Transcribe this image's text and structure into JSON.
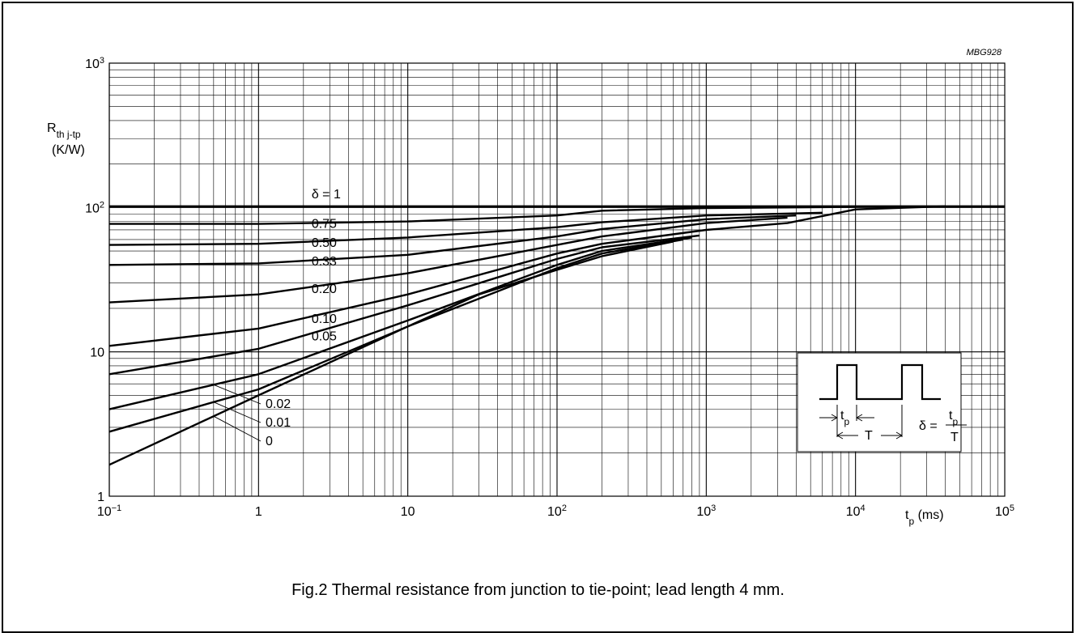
{
  "figure_code": "MBG928",
  "caption": "Fig.2  Thermal resistance from junction to tie-point; lead length 4 mm.",
  "chart_data": {
    "type": "line",
    "title": "",
    "xlabel": "t",
    "xlabel_sub": "p",
    "xlabel_unit": "(ms)",
    "ylabel": "R",
    "ylabel_sub": "th j-tp",
    "ylabel_unit": "(K/W)",
    "x_scale": "log",
    "y_scale": "log",
    "xlim": [
      0.1,
      100000
    ],
    "ylim": [
      1,
      1000
    ],
    "grid": true,
    "x_ticks": [
      {
        "value": 0.1,
        "base": "10",
        "exp": "−1"
      },
      {
        "value": 1,
        "base": "1",
        "exp": ""
      },
      {
        "value": 10,
        "base": "10",
        "exp": ""
      },
      {
        "value": 100,
        "base": "10",
        "exp": "2"
      },
      {
        "value": 1000,
        "base": "10",
        "exp": "3"
      },
      {
        "value": 10000,
        "base": "10",
        "exp": "4"
      },
      {
        "value": 100000,
        "base": "10",
        "exp": "5"
      }
    ],
    "y_ticks": [
      {
        "value": 1,
        "base": "1",
        "exp": ""
      },
      {
        "value": 10,
        "base": "10",
        "exp": ""
      },
      {
        "value": 100,
        "base": "10",
        "exp": "2"
      },
      {
        "value": 1000,
        "base": "10",
        "exp": "3"
      }
    ],
    "series": [
      {
        "name": "δ = 1",
        "label": "δ = 1",
        "label_at": 2.0,
        "points": [
          [
            0.1,
            102
          ],
          [
            100000,
            102
          ]
        ]
      },
      {
        "name": "0.75",
        "label": "0.75",
        "label_at": 2.0,
        "points": [
          [
            0.1,
            77
          ],
          [
            1,
            77
          ],
          [
            10,
            80
          ],
          [
            100,
            88
          ],
          [
            200,
            95
          ],
          [
            1000,
            99
          ],
          [
            10000,
            101
          ]
        ]
      },
      {
        "name": "0.50",
        "label": "0.50",
        "label_at": 2.0,
        "points": [
          [
            0.1,
            55
          ],
          [
            1,
            56
          ],
          [
            10,
            62
          ],
          [
            100,
            73
          ],
          [
            200,
            79
          ],
          [
            1000,
            88
          ],
          [
            6000,
            92
          ]
        ]
      },
      {
        "name": "0.33",
        "label": "0.33",
        "label_at": 2.0,
        "points": [
          [
            0.1,
            40
          ],
          [
            1,
            41
          ],
          [
            10,
            47
          ],
          [
            100,
            63
          ],
          [
            200,
            71
          ],
          [
            1000,
            83
          ],
          [
            4000,
            88
          ]
        ]
      },
      {
        "name": "0.20",
        "label": "0.20",
        "label_at": 2.0,
        "points": [
          [
            0.1,
            22
          ],
          [
            1,
            25
          ],
          [
            10,
            35
          ],
          [
            100,
            55
          ],
          [
            200,
            63
          ],
          [
            1000,
            78
          ],
          [
            3500,
            85
          ]
        ]
      },
      {
        "name": "0.10",
        "label": "0.10",
        "label_at": 2.0,
        "points": [
          [
            0.1,
            11
          ],
          [
            1,
            14.5
          ],
          [
            10,
            25
          ],
          [
            100,
            48
          ],
          [
            200,
            56
          ],
          [
            1000,
            70
          ],
          [
            3500,
            78
          ],
          [
            10000,
            97
          ],
          [
            40000,
            102
          ]
        ]
      },
      {
        "name": "0.05",
        "label": "0.05",
        "label_at": 2.0,
        "points": [
          [
            0.1,
            7
          ],
          [
            1,
            10.5
          ],
          [
            10,
            21
          ],
          [
            100,
            44
          ],
          [
            200,
            53
          ],
          [
            900,
            64
          ]
        ]
      },
      {
        "name": "0.02",
        "label": "0.02",
        "points": [
          [
            0.1,
            4
          ],
          [
            1,
            7
          ],
          [
            10,
            16.5
          ],
          [
            100,
            40
          ],
          [
            200,
            50
          ],
          [
            800,
            62
          ]
        ]
      },
      {
        "name": "0.01",
        "label": "0.01",
        "points": [
          [
            0.1,
            2.8
          ],
          [
            1,
            5.5
          ],
          [
            10,
            15
          ],
          [
            100,
            38
          ],
          [
            200,
            48
          ],
          [
            700,
            60
          ]
        ]
      },
      {
        "name": "0",
        "label": "0",
        "points": [
          [
            0.1,
            1.65
          ],
          [
            1,
            5
          ],
          [
            10,
            15
          ],
          [
            30,
            25
          ],
          [
            100,
            37
          ],
          [
            200,
            46
          ],
          [
            600,
            58
          ]
        ]
      }
    ],
    "inset": {
      "pulse_width_label": "t",
      "pulse_width_sub": "p",
      "period_label": "T",
      "formula_lhs": "δ =",
      "formula_num": "t",
      "formula_num_sub": "p",
      "formula_den": "T"
    }
  }
}
